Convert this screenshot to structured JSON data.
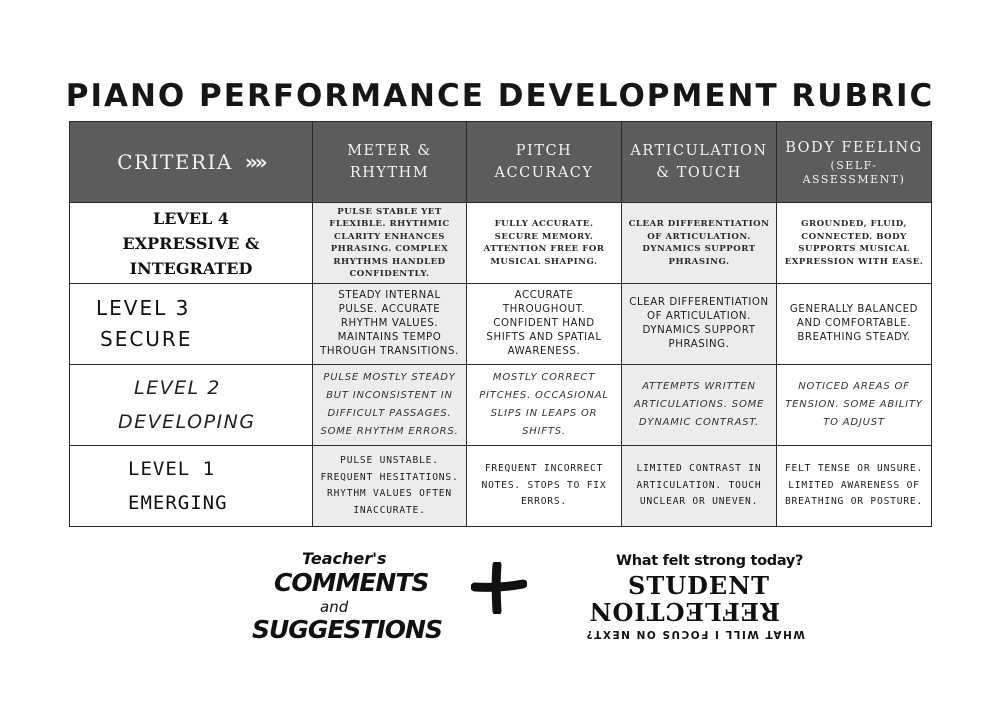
{
  "title": "PIANO PERFORMANCE DEVELOPMENT RUBRIC",
  "header": {
    "criteria": "CRITERIA",
    "criteria_arrow": "»»",
    "columns": [
      {
        "line1": "METER &",
        "line2": "RHYTHM"
      },
      {
        "line1": "PITCH",
        "line2": "ACCURACY"
      },
      {
        "line1": "ARTICULATION",
        "line2": "& TOUCH"
      },
      {
        "line1": "BODY FEELING",
        "line2": "(SELF-ASSESSMENT)"
      }
    ]
  },
  "rows": [
    {
      "level": [
        "LEVEL 4",
        "EXPRESSIVE &",
        "INTEGRATED"
      ],
      "cells": [
        "PULSE STABLE YET FLEXIBLE. RHYTHMIC CLARITY ENHANCES PHRASING. COMPLEX RHYTHMS HANDLED CONFIDENTLY.",
        "FULLY ACCURATE. SECURE MEMORY. ATTENTION FREE FOR MUSICAL SHAPING.",
        "CLEAR DIFFERENTIATION OF ARTICULATION. DYNAMICS SUPPORT PHRASING.",
        "GROUNDED, FLUID, CONNECTED. BODY SUPPORTS MUSICAL EXPRESSION WITH EASE."
      ]
    },
    {
      "level": [
        "LEVEL 3",
        "SECURE"
      ],
      "cells": [
        "STEADY INTERNAL PULSE. ACCURATE RHYTHM VALUES. MAINTAINS TEMPO THROUGH TRANSITIONS.",
        "ACCURATE THROUGHOUT. CONFIDENT HAND SHIFTS AND SPATIAL AWARENESS.",
        "CLEAR DIFFERENTIATION OF ARTICULATION. DYNAMICS SUPPORT PHRASING.",
        "GENERALLY BALANCED AND COMFORTABLE. BREATHING STEADY."
      ]
    },
    {
      "level": [
        "LEVEL 2",
        "DEVELOPING"
      ],
      "cells": [
        "PULSE MOSTLY STEADY BUT INCONSISTENT IN DIFFICULT PASSAGES. SOME RHYTHM ERRORS.",
        "MOSTLY CORRECT PITCHES. OCCASIONAL SLIPS IN LEAPS OR SHIFTS.",
        "ATTEMPTS WRITTEN ARTICULATIONS. SOME DYNAMIC CONTRAST.",
        "NOTICED AREAS OF TENSION. SOME ABILITY TO ADJUST"
      ]
    },
    {
      "level": [
        "LEVEL 1",
        "EMERGING"
      ],
      "cells": [
        "PULSE UNSTABLE. FREQUENT HESITATIONS. RHYTHM VALUES OFTEN INACCURATE.",
        "FREQUENT INCORRECT NOTES. STOPS TO FIX ERRORS.",
        "LIMITED CONTRAST IN ARTICULATION. TOUCH UNCLEAR OR UNEVEN.",
        "FELT TENSE OR UNSURE. LIMITED AWARENESS OF BREATHING OR POSTURE."
      ]
    }
  ],
  "teacher": {
    "line1": "Teacher's",
    "line2": "COMMENTS",
    "line3": "and",
    "line4": "SUGGESTIONS"
  },
  "plus_icon": "plus-icon",
  "student": {
    "question1": "What felt strong today?",
    "line1": "STUDENT",
    "line2": "REFLECTION",
    "question2": "WHAT WILL I FOCUS ON NEXT?"
  },
  "colors": {
    "header_bg": "#5c5c5c",
    "shade_bg": "#ececec",
    "border": "#2a2a2a"
  }
}
